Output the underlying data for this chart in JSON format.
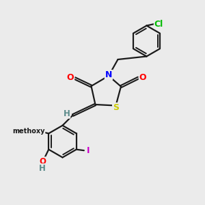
{
  "background_color": "#ebebeb",
  "bond_color": "#1a1a1a",
  "atom_colors": {
    "O": "#ff0000",
    "N": "#0000ff",
    "S": "#cccc00",
    "Cl": "#00bb00",
    "I": "#cc00cc",
    "H": "#5a8a8a",
    "C": "#1a1a1a"
  },
  "figsize": [
    3.0,
    3.0
  ],
  "dpi": 100
}
